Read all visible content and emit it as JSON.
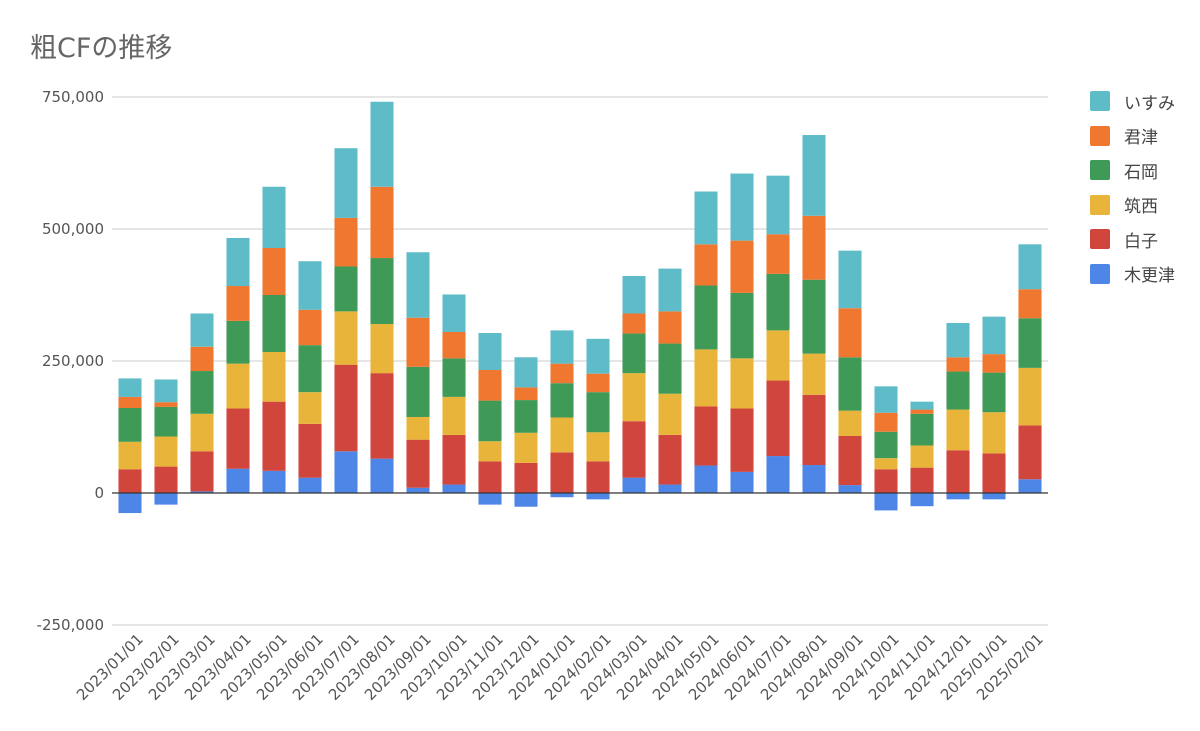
{
  "chart_data": {
    "type": "bar",
    "stacked": true,
    "title": "粗CFの推移",
    "xlabel": "",
    "ylabel": "",
    "ylim": [
      -250000,
      750000
    ],
    "yticks": [
      -250000,
      0,
      250000,
      500000,
      750000
    ],
    "ytick_labels": [
      "-250,000",
      "0",
      "250,000",
      "500,000",
      "750,000"
    ],
    "grid": true,
    "legend_position": "right",
    "categories": [
      "2023/01/01",
      "2023/02/01",
      "2023/03/01",
      "2023/04/01",
      "2023/05/01",
      "2023/06/01",
      "2023/07/01",
      "2023/08/01",
      "2023/09/01",
      "2023/10/01",
      "2023/11/01",
      "2023/12/01",
      "2024/01/01",
      "2024/02/01",
      "2024/03/01",
      "2024/04/01",
      "2024/05/01",
      "2024/06/01",
      "2024/07/01",
      "2024/08/01",
      "2024/09/01",
      "2024/10/01",
      "2024/11/01",
      "2024/12/01",
      "2025/01/01",
      "2025/02/01"
    ],
    "series": [
      {
        "name": "木更津",
        "color": "#4e86e8",
        "values": [
          -38000,
          -22000,
          3000,
          46000,
          42000,
          29000,
          79000,
          65000,
          10000,
          16000,
          -22000,
          -26000,
          -8000,
          -12000,
          29000,
          16000,
          52000,
          40000,
          70000,
          53000,
          15000,
          -33000,
          -25000,
          -12000,
          -12000,
          26000
        ]
      },
      {
        "name": "白子",
        "color": "#d0463c",
        "values": [
          45000,
          50000,
          76000,
          114000,
          131000,
          102000,
          164000,
          162000,
          91000,
          94000,
          60000,
          57000,
          77000,
          60000,
          107000,
          94000,
          112000,
          120000,
          143000,
          133000,
          93000,
          45000,
          48000,
          81000,
          75000,
          102000
        ]
      },
      {
        "name": "筑西",
        "color": "#e8b43a",
        "values": [
          52000,
          57000,
          71000,
          85000,
          94000,
          60000,
          101000,
          93000,
          43000,
          72000,
          38000,
          57000,
          66000,
          55000,
          91000,
          78000,
          108000,
          95000,
          95000,
          78000,
          48000,
          21000,
          42000,
          77000,
          78000,
          109000
        ]
      },
      {
        "name": "石岡",
        "color": "#3f9a58",
        "values": [
          64000,
          56000,
          81000,
          81000,
          108000,
          89000,
          85000,
          125000,
          95000,
          73000,
          77000,
          62000,
          65000,
          76000,
          75000,
          95000,
          121000,
          124000,
          107000,
          140000,
          101000,
          50000,
          60000,
          72000,
          75000,
          94000
        ]
      },
      {
        "name": "君津",
        "color": "#ef7730",
        "values": [
          21000,
          9000,
          46000,
          66000,
          89000,
          67000,
          92000,
          135000,
          93000,
          50000,
          58000,
          24000,
          37000,
          35000,
          38000,
          61000,
          78000,
          99000,
          75000,
          121000,
          93000,
          36000,
          8000,
          27000,
          35000,
          55000
        ]
      },
      {
        "name": "いすみ",
        "color": "#5ebcc8",
        "values": [
          35000,
          43000,
          63000,
          91000,
          116000,
          92000,
          132000,
          161000,
          124000,
          71000,
          70000,
          57000,
          63000,
          66000,
          71000,
          81000,
          100000,
          127000,
          111000,
          153000,
          109000,
          50000,
          15000,
          65000,
          71000,
          85000
        ]
      }
    ]
  }
}
